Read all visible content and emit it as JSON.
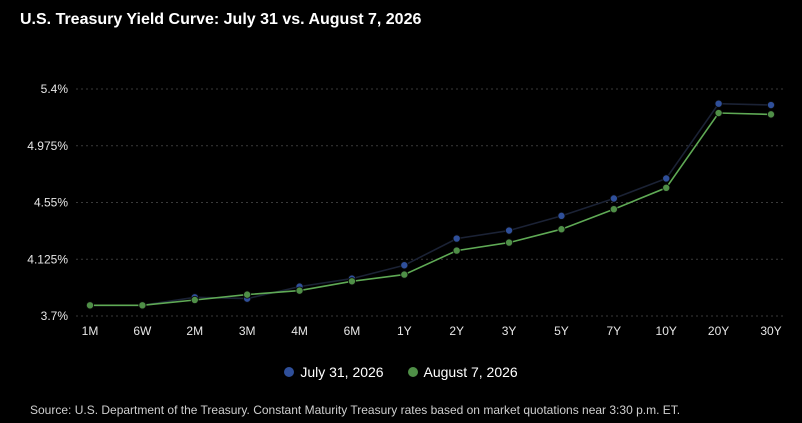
{
  "chart_data": {
    "type": "line",
    "title": "U.S. Treasury Yield Curve: July 31 vs. August 7, 2026",
    "categories": [
      "1M",
      "6W",
      "2M",
      "3M",
      "4M",
      "6M",
      "1Y",
      "2Y",
      "3Y",
      "5Y",
      "7Y",
      "10Y",
      "20Y",
      "30Y"
    ],
    "y_ticks": [
      "5.4%",
      "4.975%",
      "4.55%",
      "4.125%",
      "3.7%"
    ],
    "ylim": [
      3.7,
      5.4
    ],
    "grid": true,
    "legend_position": "bottom",
    "series": [
      {
        "name": "July 31, 2026",
        "color": "#2f4f9a",
        "line_color": "#1b2235",
        "values": [
          3.78,
          3.78,
          3.84,
          3.83,
          3.92,
          3.98,
          4.08,
          4.28,
          4.34,
          4.45,
          4.58,
          4.73,
          5.29,
          5.28
        ]
      },
      {
        "name": "August 7, 2026",
        "color": "#4f8f47",
        "line_color": "#5faa55",
        "values": [
          3.78,
          3.78,
          3.82,
          3.86,
          3.89,
          3.96,
          4.01,
          4.19,
          4.25,
          4.35,
          4.5,
          4.66,
          5.22,
          5.21
        ]
      }
    ]
  },
  "source_text": "Source: U.S. Department of the Treasury. Constant Maturity Treasury rates based on market quotations near 3:30 p.m. ET."
}
